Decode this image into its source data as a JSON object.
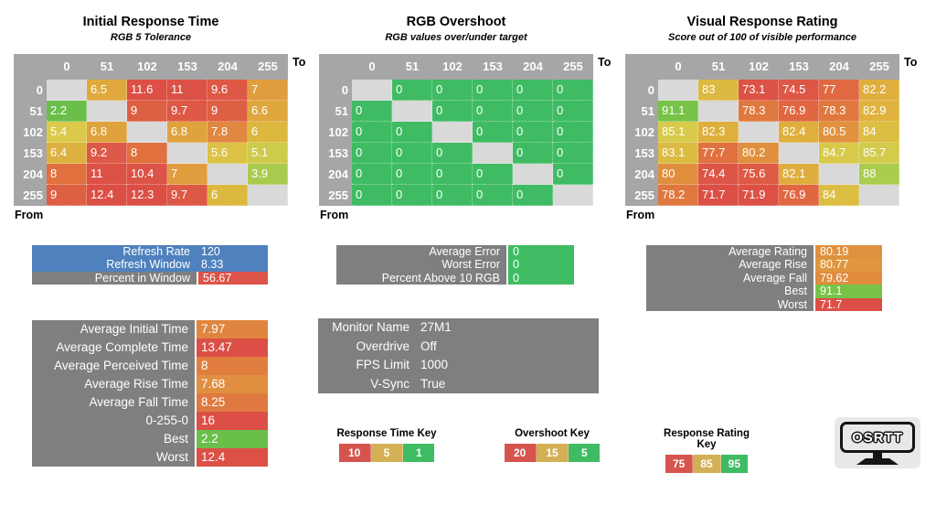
{
  "chart_data": [
    {
      "type": "heatmap",
      "title": "Initial Response Time",
      "subtitle": "RGB 5 Tolerance",
      "x_axis_label": "To",
      "y_axis_label": "From",
      "x": [
        "0",
        "51",
        "102",
        "153",
        "204",
        "255"
      ],
      "y": [
        "0",
        "51",
        "102",
        "153",
        "204",
        "255"
      ],
      "values": [
        [
          null,
          6.5,
          11.6,
          11,
          9.6,
          7
        ],
        [
          2.2,
          null,
          9,
          9.7,
          9,
          6.6
        ],
        [
          5.4,
          6.8,
          null,
          6.8,
          7.8,
          6
        ],
        [
          6.4,
          9.2,
          8,
          null,
          5.6,
          5.1
        ],
        [
          8,
          11,
          10.4,
          7,
          null,
          3.9
        ],
        [
          9,
          12.4,
          12.3,
          9.7,
          6,
          null
        ]
      ],
      "cell_colors": [
        [
          null,
          "#dfa93d",
          "#dc5046",
          "#dc5146",
          "#dd5946",
          "#e09d3e"
        ],
        [
          "#6abf4b",
          null,
          "#dd6044",
          "#dd5845",
          "#dd6044",
          "#dfa63d"
        ],
        [
          "#dcc94b",
          "#dfa33d",
          null,
          "#dfa33d",
          "#e0883f",
          "#dcb83f"
        ],
        [
          "#ddb140",
          "#dd5947",
          "#e0713f",
          null,
          "#dcc246",
          "#cdca4c"
        ],
        [
          "#e0713f",
          "#dc5146",
          "#dc5347",
          "#e09d3e",
          null,
          "#a9cb4d"
        ],
        [
          "#dd6044",
          "#dc4f46",
          "#dc4f46",
          "#dd5845",
          "#dcb83f",
          null
        ]
      ]
    },
    {
      "type": "heatmap",
      "title": "RGB Overshoot",
      "subtitle": "RGB values over/under target",
      "x_axis_label": "To",
      "y_axis_label": "From",
      "x": [
        "0",
        "51",
        "102",
        "153",
        "204",
        "255"
      ],
      "y": [
        "0",
        "51",
        "102",
        "153",
        "204",
        "255"
      ],
      "values": [
        [
          null,
          0,
          0,
          0,
          0,
          0
        ],
        [
          0,
          null,
          0,
          0,
          0,
          0
        ],
        [
          0,
          0,
          null,
          0,
          0,
          0
        ],
        [
          0,
          0,
          0,
          null,
          0,
          0
        ],
        [
          0,
          0,
          0,
          0,
          null,
          0
        ],
        [
          0,
          0,
          0,
          0,
          0,
          null
        ]
      ],
      "cell_colors": [
        [
          null,
          "#3fbc63",
          "#3fbc63",
          "#3fbc63",
          "#3fbc63",
          "#3fbc63"
        ],
        [
          "#3fbc63",
          null,
          "#3fbc63",
          "#3fbc63",
          "#3fbc63",
          "#3fbc63"
        ],
        [
          "#3fbc63",
          "#3fbc63",
          null,
          "#3fbc63",
          "#3fbc63",
          "#3fbc63"
        ],
        [
          "#3fbc63",
          "#3fbc63",
          "#3fbc63",
          null,
          "#3fbc63",
          "#3fbc63"
        ],
        [
          "#3fbc63",
          "#3fbc63",
          "#3fbc63",
          "#3fbc63",
          null,
          "#3fbc63"
        ],
        [
          "#3fbc63",
          "#3fbc63",
          "#3fbc63",
          "#3fbc63",
          "#3fbc63",
          null
        ]
      ]
    },
    {
      "type": "heatmap",
      "title": "Visual Response Rating",
      "subtitle": "Score out of 100 of visible performance",
      "x_axis_label": "To",
      "y_axis_label": "From",
      "x": [
        "0",
        "51",
        "102",
        "153",
        "204",
        "255"
      ],
      "y": [
        "0",
        "51",
        "102",
        "153",
        "204",
        "255"
      ],
      "values": [
        [
          null,
          83,
          73.1,
          74.5,
          77,
          82.2
        ],
        [
          91.1,
          null,
          78.3,
          76.9,
          78.3,
          82.9
        ],
        [
          85.1,
          82.3,
          null,
          82.4,
          80.5,
          84
        ],
        [
          83.1,
          77.7,
          80.2,
          null,
          84.7,
          85.7
        ],
        [
          80,
          74.4,
          75.6,
          82.1,
          null,
          88
        ],
        [
          78.2,
          71.7,
          71.9,
          76.9,
          84,
          null
        ]
      ],
      "cell_colors": [
        [
          null,
          "#dcb941",
          "#dc5247",
          "#dd5646",
          "#e06941",
          "#dfae3d"
        ],
        [
          "#77c347",
          null,
          "#e0793f",
          "#e06742",
          "#e0793f",
          "#dfb33e"
        ],
        [
          "#d8ca4b",
          "#dfaf3d",
          null,
          "#dfaf3d",
          "#e0923e",
          "#dcbe43"
        ],
        [
          "#dcbb42",
          "#e07140",
          "#e08f3e",
          null,
          "#d9c94b",
          "#d3cb4c"
        ],
        [
          "#e08e3e",
          "#dd5547",
          "#dd5a45",
          "#dfad3e",
          null,
          "#abcc4d"
        ],
        [
          "#e0773f",
          "#dc4f46",
          "#dc5046",
          "#e06742",
          "#dcbe43",
          null
        ]
      ]
    }
  ],
  "panels": {
    "refresh": {
      "rows": [
        {
          "label": "Refresh Rate",
          "value": "120",
          "label_bg": "#4e81bd",
          "value_bg": "#4e81bd"
        },
        {
          "label": "Refresh Window",
          "value": "8.33",
          "label_bg": "#4e81bd",
          "value_bg": "#4e81bd"
        },
        {
          "label": "Percent in Window",
          "value": "56.67",
          "label_bg": "#7f7f7f",
          "value_bg": "#dc5349"
        }
      ]
    },
    "times": {
      "rows": [
        {
          "label": "Average Initial Time",
          "value": "7.97",
          "label_bg": "#7f7f7f",
          "value_bg": "#e0853f"
        },
        {
          "label": "Average Complete Time",
          "value": "13.47",
          "label_bg": "#7f7f7f",
          "value_bg": "#dc4f46"
        },
        {
          "label": "Average Perceived Time",
          "value": "8",
          "label_bg": "#7f7f7f",
          "value_bg": "#e07d3f"
        },
        {
          "label": "Average Rise Time",
          "value": "7.68",
          "label_bg": "#7f7f7f",
          "value_bg": "#e08f40"
        },
        {
          "label": "Average Fall Time",
          "value": "8.25",
          "label_bg": "#7f7f7f",
          "value_bg": "#e0793f"
        },
        {
          "label": "0-255-0",
          "value": "16",
          "label_bg": "#7f7f7f",
          "value_bg": "#dc4f46"
        },
        {
          "label": "Best",
          "value": "2.2",
          "label_bg": "#7f7f7f",
          "value_bg": "#6abf4b"
        },
        {
          "label": "Worst",
          "value": "12.4",
          "label_bg": "#7f7f7f",
          "value_bg": "#dc5046"
        }
      ]
    },
    "error": {
      "rows": [
        {
          "label": "Average Error",
          "value": "0",
          "label_bg": "#7f7f7f",
          "value_bg": "#3fbc63"
        },
        {
          "label": "Worst Error",
          "value": "0",
          "label_bg": "#7f7f7f",
          "value_bg": "#3fbc63"
        },
        {
          "label": "Percent Above 10 RGB",
          "value": "0",
          "label_bg": "#7f7f7f",
          "value_bg": "#3fbc63"
        }
      ]
    },
    "monitor": {
      "rows": [
        {
          "label": "Monitor Name",
          "value": "27M1",
          "label_bg": "#7f7f7f",
          "value_bg": "#7f7f7f"
        },
        {
          "label": "Overdrive",
          "value": "Off",
          "label_bg": "#7f7f7f",
          "value_bg": "#7f7f7f"
        },
        {
          "label": "FPS Limit",
          "value": "1000",
          "label_bg": "#7f7f7f",
          "value_bg": "#7f7f7f"
        },
        {
          "label": "V-Sync",
          "value": "True",
          "label_bg": "#7f7f7f",
          "value_bg": "#7f7f7f"
        }
      ]
    },
    "rating": {
      "rows": [
        {
          "label": "Average Rating",
          "value": "80.19",
          "label_bg": "#7f7f7f",
          "value_bg": "#e0913e"
        },
        {
          "label": "Average Rise",
          "value": "80.77",
          "label_bg": "#7f7f7f",
          "value_bg": "#e0963e"
        },
        {
          "label": "Average Fall",
          "value": "79.62",
          "label_bg": "#7f7f7f",
          "value_bg": "#e08b3e"
        },
        {
          "label": "Best",
          "value": "91.1",
          "label_bg": "#7f7f7f",
          "value_bg": "#77c347"
        },
        {
          "label": "Worst",
          "value": "71.7",
          "label_bg": "#7f7f7f",
          "value_bg": "#dc4f46"
        }
      ]
    }
  },
  "keys": [
    {
      "title": "Response Time Key",
      "cells": [
        {
          "v": "10",
          "c": "#d6544e"
        },
        {
          "v": "5",
          "c": "#d3af56"
        },
        {
          "v": "1",
          "c": "#3fbc63"
        }
      ]
    },
    {
      "title": "Overshoot Key",
      "cells": [
        {
          "v": "20",
          "c": "#d6544e"
        },
        {
          "v": "15",
          "c": "#d3af56"
        },
        {
          "v": "5",
          "c": "#3fbc63"
        }
      ]
    },
    {
      "title": "Response Rating Key",
      "cells": [
        {
          "v": "75",
          "c": "#d6544e"
        },
        {
          "v": "85",
          "c": "#d3af56"
        },
        {
          "v": "95",
          "c": "#3fbc63"
        }
      ]
    }
  ],
  "logo": {
    "text": "OSRTT"
  },
  "colors": {
    "header_gray": "#a6a6a6",
    "blank_cell": "#d9d9d9",
    "panel_gray": "#7f7f7f",
    "blue": "#4e81bd",
    "key_red": "#d6544e",
    "key_gold": "#d3af56",
    "key_green": "#3fbc63"
  }
}
